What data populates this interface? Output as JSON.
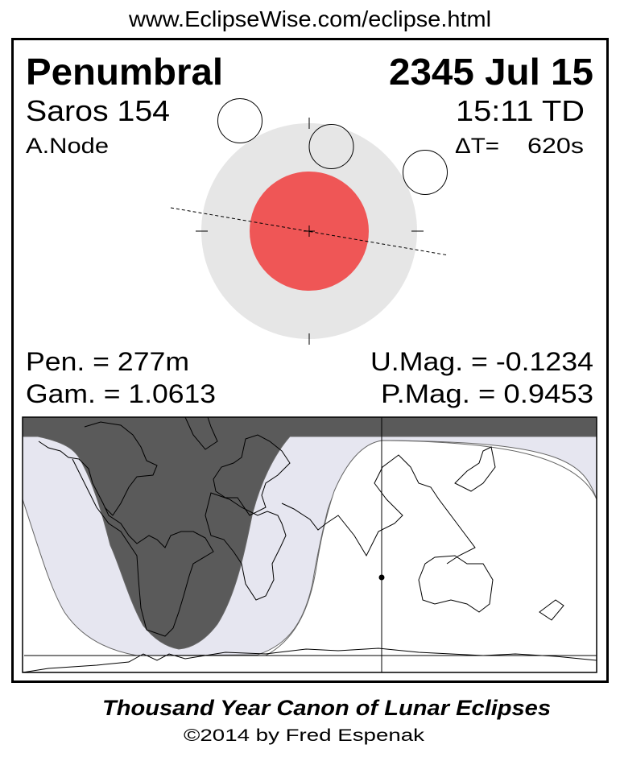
{
  "header": {
    "url": "www.EclipseWise.com/eclipse.html"
  },
  "eclipse": {
    "type": "Penumbral",
    "date": "2345 Jul 15",
    "saros": "Saros 154",
    "time": "15:11 TD",
    "node": "A.Node",
    "delta_t_label": "ΔT=",
    "delta_t_value": "620s",
    "pen_duration": "Pen. = 277m",
    "gamma": "Gam. = 1.0613",
    "umbral_mag": "U.Mag. = -0.1234",
    "penumbral_mag": "P.Mag. = 0.9453"
  },
  "colors": {
    "penumbra": "#e6e6e6",
    "umbra": "#ef5656",
    "map_night_visible": "#5a5a5a",
    "map_penumbral_zone": "#e6e6f0",
    "map_not_visible": "#ffffff"
  },
  "footer": {
    "title": "Thousand Year Canon of Lunar Eclipses",
    "copyright": "©2014 by Fred Espenak"
  }
}
